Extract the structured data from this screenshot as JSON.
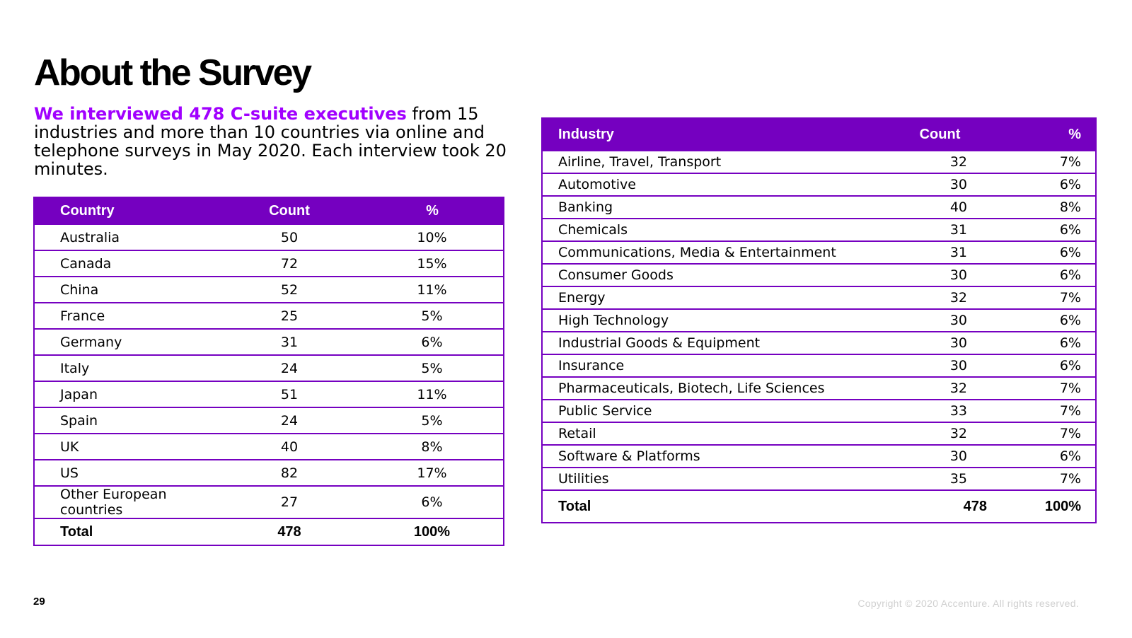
{
  "title": "About the Survey",
  "intro": {
    "highlight": "We interviewed 478 C-suite executives",
    "rest": " from 15 industries and more than 10 countries via online and telephone surveys in May 2020. Each interview took 20 minutes."
  },
  "colors": {
    "accent": "#7500c0",
    "highlight": "#a100ff"
  },
  "country_table": {
    "headers": [
      "Country",
      "Count",
      "%"
    ],
    "rows": [
      [
        "Australia",
        "50",
        "10%"
      ],
      [
        "Canada",
        "72",
        "15%"
      ],
      [
        "China",
        "52",
        "11%"
      ],
      [
        "France",
        "25",
        "5%"
      ],
      [
        "Germany",
        "31",
        "6%"
      ],
      [
        "Italy",
        "24",
        "5%"
      ],
      [
        "Japan",
        "51",
        "11%"
      ],
      [
        "Spain",
        "24",
        "5%"
      ],
      [
        "UK",
        "40",
        "8%"
      ],
      [
        "US",
        "82",
        "17%"
      ],
      [
        "Other European countries",
        "27",
        "6%"
      ]
    ],
    "total": [
      "Total",
      "478",
      "100%"
    ]
  },
  "industry_table": {
    "headers": [
      "Industry",
      "Count",
      "%"
    ],
    "rows": [
      [
        "Airline, Travel, Transport",
        "32",
        "7%"
      ],
      [
        "Automotive",
        "30",
        "6%"
      ],
      [
        "Banking",
        "40",
        "8%"
      ],
      [
        "Chemicals",
        "31",
        "6%"
      ],
      [
        "Communications, Media & Entertainment",
        "31",
        "6%"
      ],
      [
        "Consumer Goods",
        "30",
        "6%"
      ],
      [
        "Energy",
        "32",
        "7%"
      ],
      [
        "High Technology",
        "30",
        "6%"
      ],
      [
        "Industrial Goods & Equipment",
        "30",
        "6%"
      ],
      [
        "Insurance",
        "30",
        "6%"
      ],
      [
        "Pharmaceuticals, Biotech, Life Sciences",
        "32",
        "7%"
      ],
      [
        "Public Service",
        "33",
        "7%"
      ],
      [
        "Retail",
        "32",
        "7%"
      ],
      [
        "Software & Platforms",
        "30",
        "6%"
      ],
      [
        "Utilities",
        "35",
        "7%"
      ]
    ],
    "total": [
      "Total",
      "478",
      "100%"
    ]
  },
  "footer": {
    "page_number": "29",
    "copyright": "Copyright © 2020 Accenture. All rights reserved."
  }
}
